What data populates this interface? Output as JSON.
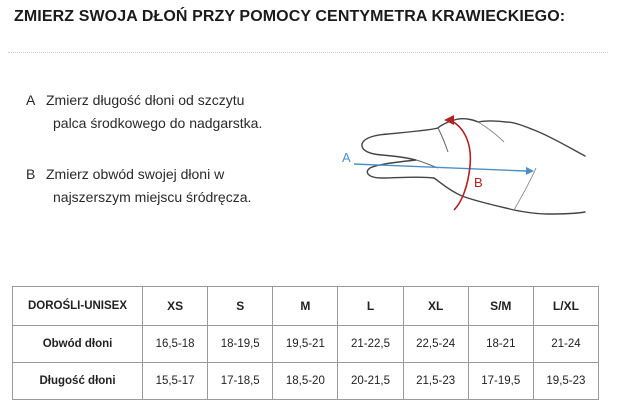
{
  "title": "ZMIERZ SWOJA DŁOŃ PRZY POMOCY CENTYMETRA KRAWIECKIEGO:",
  "steps": [
    {
      "letter": "A",
      "line1": "Zmierz długość dłoni od szczytu",
      "line2": "palca środkowego do nadgarstka."
    },
    {
      "letter": "B",
      "line1": "Zmierz obwód swojej dłoni w",
      "line2": "najszerszym miejscu śródręcza."
    }
  ],
  "illustration": {
    "label_a": "A",
    "label_b": "B",
    "color_a": "#4a90c8",
    "color_b": "#b22222"
  },
  "table": {
    "header": [
      "DOROŚLI-UNISEX",
      "XS",
      "S",
      "M",
      "L",
      "XL",
      "S/M",
      "L/XL"
    ],
    "rows": [
      {
        "label": "Obwód dłoni",
        "values": [
          "16,5-18",
          "18-19,5",
          "19,5-21",
          "21-22,5",
          "22,5-24",
          "18-21",
          "21-24"
        ]
      },
      {
        "label": "Długość dłoni",
        "values": [
          "15,5-17",
          "17-18,5",
          "18,5-20",
          "20-21,5",
          "21,5-23",
          "17-19,5",
          "19,5-23"
        ]
      }
    ]
  }
}
